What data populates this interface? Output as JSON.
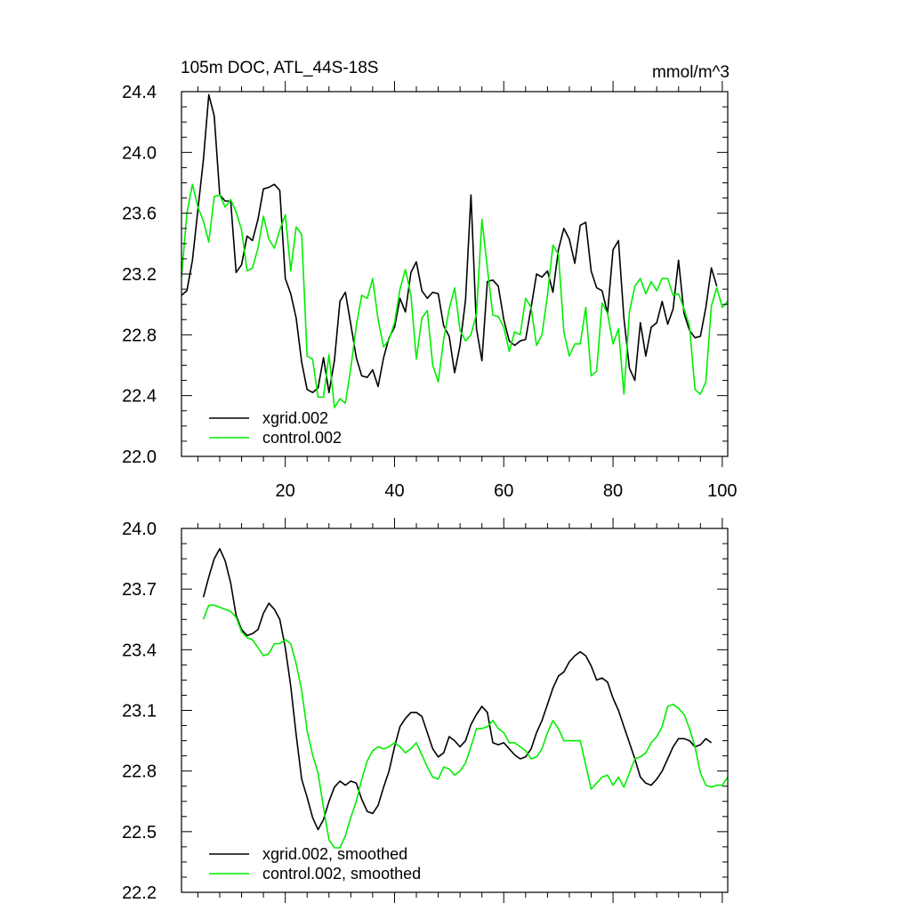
{
  "chart_data": [
    {
      "type": "line",
      "title": "105m DOC, ATL_44S-18S",
      "units": "mmol/m^3",
      "xlim": [
        1,
        101
      ],
      "ylim": [
        22.0,
        24.4
      ],
      "xticks": [
        20,
        40,
        60,
        80,
        100
      ],
      "yticks": [
        22.0,
        22.4,
        22.8,
        23.2,
        23.6,
        24.0,
        24.4
      ],
      "ytick_labels": [
        "22.0",
        "22.4",
        "22.8",
        "23.2",
        "23.6",
        "24.0",
        "24.4"
      ],
      "xtick_labels": [
        "20",
        "40",
        "60",
        "80",
        "100"
      ],
      "legend_position": "bottom-left",
      "series": [
        {
          "name": "xgrid.002",
          "color": "#000000",
          "x_start": 1,
          "values": [
            23.06,
            23.09,
            23.29,
            23.62,
            23.95,
            24.38,
            24.24,
            23.72,
            23.68,
            23.68,
            23.21,
            23.26,
            23.45,
            23.42,
            23.56,
            23.76,
            23.77,
            23.79,
            23.75,
            23.17,
            23.07,
            22.91,
            22.62,
            22.44,
            22.42,
            22.45,
            22.65,
            22.42,
            22.63,
            23.02,
            23.08,
            22.87,
            22.65,
            22.53,
            22.52,
            22.57,
            22.46,
            22.65,
            22.78,
            22.85,
            23.04,
            22.95,
            23.21,
            23.28,
            23.09,
            23.04,
            23.08,
            23.07,
            22.86,
            22.79,
            22.55,
            22.73,
            23.03,
            23.72,
            22.84,
            22.63,
            23.15,
            23.16,
            23.12,
            22.9,
            22.76,
            22.73,
            22.76,
            22.77,
            22.98,
            23.2,
            23.18,
            23.22,
            23.08,
            23.36,
            23.5,
            23.43,
            23.27,
            23.52,
            23.54,
            23.22,
            23.11,
            23.09,
            22.94,
            23.36,
            23.42,
            22.91,
            22.58,
            22.5,
            22.88,
            22.66,
            22.85,
            22.88,
            23.02,
            22.87,
            22.97,
            23.29,
            22.94,
            22.83,
            22.78,
            22.79,
            22.98,
            23.24,
            23.12
          ]
        },
        {
          "name": "control.002",
          "color": "#00ee00",
          "x_start": 1,
          "values": [
            23.18,
            23.6,
            23.79,
            23.64,
            23.55,
            23.41,
            23.71,
            23.72,
            23.64,
            23.69,
            23.61,
            23.49,
            23.22,
            23.24,
            23.37,
            23.58,
            23.43,
            23.37,
            23.49,
            23.59,
            23.22,
            23.51,
            23.46,
            22.66,
            22.64,
            22.39,
            22.39,
            22.67,
            22.32,
            22.38,
            22.35,
            22.58,
            22.86,
            23.06,
            23.04,
            23.17,
            22.9,
            22.72,
            22.77,
            22.88,
            23.1,
            23.23,
            23.06,
            22.64,
            22.91,
            22.96,
            22.6,
            22.49,
            22.77,
            22.97,
            23.11,
            22.83,
            22.76,
            22.8,
            22.94,
            23.56,
            23.24,
            22.93,
            22.92,
            22.85,
            22.69,
            22.82,
            22.8,
            23.04,
            22.98,
            22.73,
            22.8,
            23.06,
            23.39,
            23.33,
            22.82,
            22.66,
            22.74,
            22.74,
            22.98,
            22.53,
            22.56,
            23.01,
            22.94,
            22.74,
            22.84,
            22.41,
            22.95,
            23.12,
            23.17,
            23.07,
            23.15,
            23.09,
            23.17,
            23.17,
            23.06,
            23.07,
            22.97,
            22.86,
            22.44,
            22.41,
            22.49,
            22.99,
            23.11,
            22.98,
            23.02
          ]
        }
      ]
    },
    {
      "type": "line",
      "xlim": [
        1,
        101
      ],
      "ylim": [
        22.2,
        24.0
      ],
      "xticks": [
        20,
        40,
        60,
        80,
        100
      ],
      "yticks": [
        22.2,
        22.5,
        22.8,
        23.1,
        23.4,
        23.7,
        24.0
      ],
      "ytick_labels": [
        "22.2",
        "22.5",
        "22.8",
        "23.1",
        "23.4",
        "23.7",
        "24.0"
      ],
      "legend_position": "bottom-left",
      "series": [
        {
          "name": "xgrid.002, smoothed",
          "color": "#000000",
          "x_start": 5,
          "values": [
            23.66,
            23.76,
            23.85,
            23.9,
            23.84,
            23.73,
            23.57,
            23.5,
            23.47,
            23.48,
            23.5,
            23.58,
            23.63,
            23.6,
            23.55,
            23.41,
            23.22,
            22.98,
            22.76,
            22.67,
            22.57,
            22.51,
            22.56,
            22.65,
            22.72,
            22.75,
            22.73,
            22.75,
            22.74,
            22.66,
            22.6,
            22.59,
            22.63,
            22.72,
            22.8,
            22.92,
            23.02,
            23.06,
            23.09,
            23.09,
            23.07,
            22.99,
            22.91,
            22.87,
            22.89,
            22.97,
            22.95,
            22.92,
            22.95,
            23.03,
            23.08,
            23.12,
            23.09,
            22.94,
            22.93,
            22.94,
            22.91,
            22.88,
            22.86,
            22.87,
            22.91,
            22.99,
            23.05,
            23.13,
            23.21,
            23.27,
            23.29,
            23.34,
            23.37,
            23.39,
            23.37,
            23.32,
            23.25,
            23.26,
            23.24,
            23.16,
            23.1,
            23.02,
            22.94,
            22.86,
            22.77,
            22.74,
            22.73,
            22.76,
            22.8,
            22.86,
            22.92,
            22.96,
            22.96,
            22.95,
            22.92,
            22.93,
            22.96,
            22.94
          ]
        },
        {
          "name": "control.002, smoothed",
          "color": "#00ee00",
          "x_start": 5,
          "values": [
            23.55,
            23.62,
            23.62,
            23.61,
            23.6,
            23.59,
            23.56,
            23.49,
            23.46,
            23.45,
            23.41,
            23.37,
            23.38,
            23.43,
            23.43,
            23.45,
            23.43,
            23.33,
            23.2,
            23.0,
            22.88,
            22.79,
            22.62,
            22.46,
            22.42,
            22.42,
            22.48,
            22.57,
            22.65,
            22.76,
            22.85,
            22.9,
            22.92,
            22.91,
            22.92,
            22.94,
            22.92,
            22.89,
            22.91,
            22.94,
            22.88,
            22.82,
            22.77,
            22.76,
            22.82,
            22.81,
            22.78,
            22.8,
            22.84,
            22.92,
            23.01,
            23.01,
            23.02,
            23.05,
            23.01,
            22.99,
            22.94,
            22.94,
            22.92,
            22.9,
            22.86,
            22.87,
            22.91,
            22.99,
            23.05,
            23.01,
            22.95,
            22.95,
            22.95,
            22.95,
            22.83,
            22.71,
            22.74,
            22.77,
            22.78,
            22.73,
            22.77,
            22.72,
            22.79,
            22.86,
            22.87,
            22.89,
            22.94,
            22.97,
            23.02,
            23.12,
            23.13,
            23.11,
            23.08,
            23.01,
            22.92,
            22.79,
            22.73,
            22.72,
            22.73,
            22.73,
            22.77
          ]
        }
      ]
    }
  ]
}
